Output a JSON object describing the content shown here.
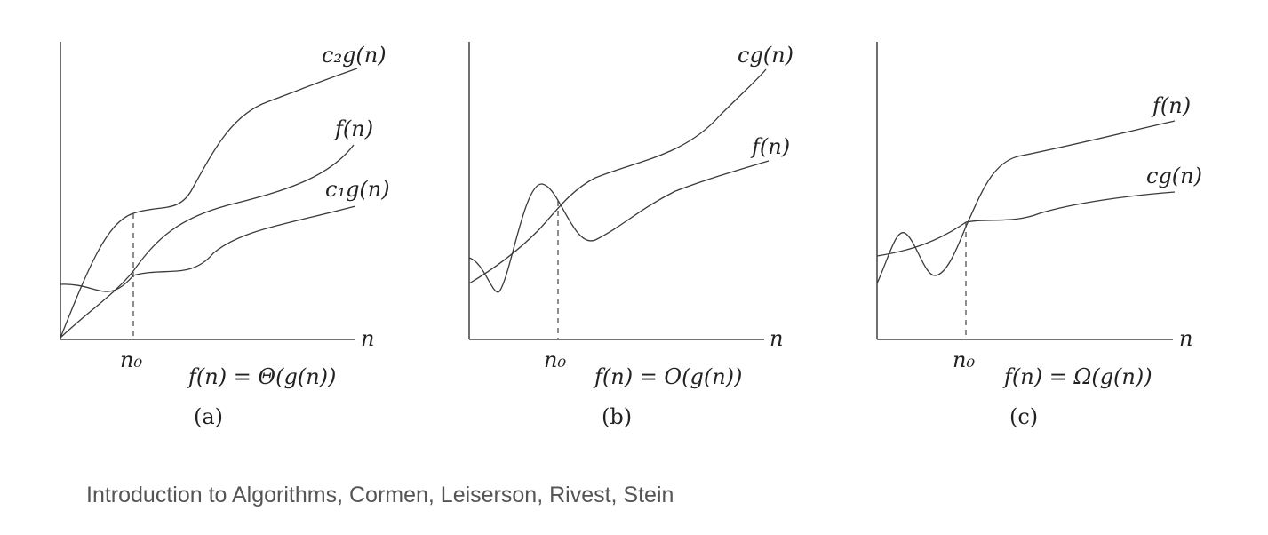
{
  "panels": [
    {
      "id": "a",
      "curve_labels": [
        "c₂g(n)",
        "f(n)",
        "c₁g(n)"
      ],
      "x_axis_label": "n",
      "threshold_label": "n₀",
      "relation": "f(n) = Θ(g(n))",
      "panel_label": "(a)"
    },
    {
      "id": "b",
      "curve_labels": [
        "cg(n)",
        "f(n)"
      ],
      "x_axis_label": "n",
      "threshold_label": "n₀",
      "relation": "f(n) = O(g(n))",
      "panel_label": "(b)"
    },
    {
      "id": "c",
      "curve_labels": [
        "f(n)",
        "cg(n)"
      ],
      "x_axis_label": "n",
      "threshold_label": "n₀",
      "relation": "f(n) = Ω(g(n))",
      "panel_label": "(c)"
    }
  ],
  "caption": "Introduction to Algorithms, Cormen, Leiserson, Rivest, Stein"
}
